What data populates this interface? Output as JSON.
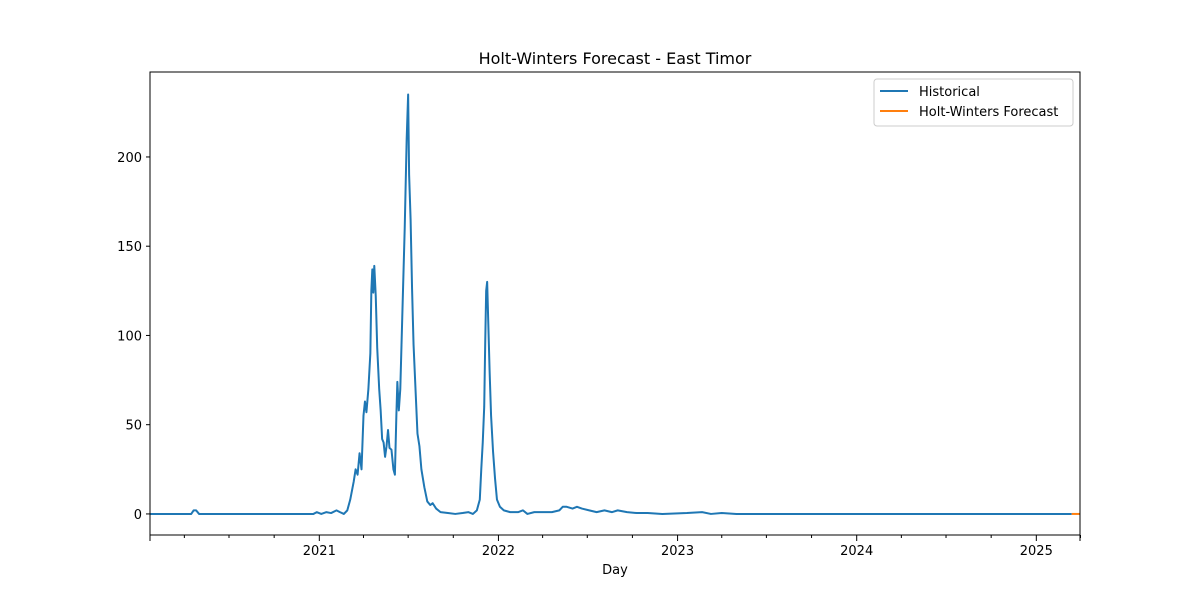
{
  "chart_data": {
    "type": "line",
    "title": "Holt-Winters Forecast - East Timor",
    "xlabel": "Day",
    "ylabel": "",
    "xlim": [
      "2020-01-22",
      "2025-03-31"
    ],
    "ylim": [
      -11.8,
      247.6
    ],
    "x_ticks": [
      {
        "date": "2021-01-01",
        "label": "2021"
      },
      {
        "date": "2022-01-01",
        "label": "2022"
      },
      {
        "date": "2023-01-01",
        "label": "2023"
      },
      {
        "date": "2024-01-01",
        "label": "2024"
      },
      {
        "date": "2025-01-01",
        "label": "2025"
      }
    ],
    "x_minor_ticks": [
      "2020-04-01",
      "2020-07-01",
      "2020-10-01",
      "2021-04-01",
      "2021-07-01",
      "2021-10-01",
      "2022-04-01",
      "2022-07-01",
      "2022-10-01",
      "2023-04-01",
      "2023-07-01",
      "2023-10-01",
      "2024-04-01",
      "2024-07-01",
      "2024-10-01",
      "2025-04-01"
    ],
    "y_ticks": [
      0,
      50,
      100,
      150,
      200
    ],
    "grid": false,
    "legend_position": "upper right",
    "series": [
      {
        "name": "Historical",
        "color": "#1f77b4",
        "points": [
          [
            "2020-01-22",
            0
          ],
          [
            "2020-04-15",
            0
          ],
          [
            "2020-04-20",
            2
          ],
          [
            "2020-04-25",
            2
          ],
          [
            "2020-05-01",
            0
          ],
          [
            "2020-08-01",
            0
          ],
          [
            "2020-12-20",
            0
          ],
          [
            "2020-12-27",
            1
          ],
          [
            "2021-01-05",
            0
          ],
          [
            "2021-01-15",
            1
          ],
          [
            "2021-01-25",
            0.5
          ],
          [
            "2021-02-05",
            2
          ],
          [
            "2021-02-12",
            1
          ],
          [
            "2021-02-20",
            0
          ],
          [
            "2021-02-27",
            2
          ],
          [
            "2021-03-05",
            8
          ],
          [
            "2021-03-12",
            18
          ],
          [
            "2021-03-16",
            25
          ],
          [
            "2021-03-20",
            22
          ],
          [
            "2021-03-24",
            34
          ],
          [
            "2021-03-28",
            25
          ],
          [
            "2021-04-01",
            55
          ],
          [
            "2021-04-04",
            63
          ],
          [
            "2021-04-07",
            57
          ],
          [
            "2021-04-11",
            70
          ],
          [
            "2021-04-15",
            90
          ],
          [
            "2021-04-17",
            125
          ],
          [
            "2021-04-19",
            137
          ],
          [
            "2021-04-21",
            124
          ],
          [
            "2021-04-23",
            139
          ],
          [
            "2021-04-26",
            122
          ],
          [
            "2021-04-29",
            93
          ],
          [
            "2021-05-03",
            70
          ],
          [
            "2021-05-06",
            58
          ],
          [
            "2021-05-09",
            42
          ],
          [
            "2021-05-12",
            40
          ],
          [
            "2021-05-15",
            32
          ],
          [
            "2021-05-18",
            38
          ],
          [
            "2021-05-21",
            47
          ],
          [
            "2021-05-24",
            37
          ],
          [
            "2021-05-28",
            36
          ],
          [
            "2021-06-01",
            25
          ],
          [
            "2021-06-04",
            22
          ],
          [
            "2021-06-07",
            55
          ],
          [
            "2021-06-09",
            74
          ],
          [
            "2021-06-12",
            58
          ],
          [
            "2021-06-15",
            70
          ],
          [
            "2021-06-19",
            110
          ],
          [
            "2021-06-24",
            160
          ],
          [
            "2021-06-28",
            210
          ],
          [
            "2021-07-01",
            235
          ],
          [
            "2021-07-03",
            190
          ],
          [
            "2021-07-06",
            165
          ],
          [
            "2021-07-09",
            126
          ],
          [
            "2021-07-12",
            95
          ],
          [
            "2021-07-16",
            70
          ],
          [
            "2021-07-20",
            45
          ],
          [
            "2021-07-24",
            38
          ],
          [
            "2021-07-28",
            25
          ],
          [
            "2021-08-03",
            15
          ],
          [
            "2021-08-09",
            7
          ],
          [
            "2021-08-15",
            5
          ],
          [
            "2021-08-20",
            6
          ],
          [
            "2021-08-27",
            3
          ],
          [
            "2021-09-05",
            1
          ],
          [
            "2021-09-20",
            0.5
          ],
          [
            "2021-10-05",
            0
          ],
          [
            "2021-10-20",
            0.5
          ],
          [
            "2021-11-01",
            1
          ],
          [
            "2021-11-10",
            0
          ],
          [
            "2021-11-18",
            2
          ],
          [
            "2021-11-24",
            8
          ],
          [
            "2021-11-27",
            25
          ],
          [
            "2021-11-30",
            40
          ],
          [
            "2021-12-03",
            60
          ],
          [
            "2021-12-05",
            95
          ],
          [
            "2021-12-07",
            125
          ],
          [
            "2021-12-09",
            130
          ],
          [
            "2021-12-11",
            110
          ],
          [
            "2021-12-14",
            80
          ],
          [
            "2021-12-17",
            55
          ],
          [
            "2021-12-21",
            35
          ],
          [
            "2021-12-25",
            20
          ],
          [
            "2021-12-29",
            8
          ],
          [
            "2022-01-04",
            4
          ],
          [
            "2022-01-12",
            2
          ],
          [
            "2022-01-25",
            1
          ],
          [
            "2022-02-10",
            1
          ],
          [
            "2022-02-20",
            2
          ],
          [
            "2022-03-01",
            0
          ],
          [
            "2022-03-15",
            1
          ],
          [
            "2022-04-01",
            1
          ],
          [
            "2022-04-20",
            1
          ],
          [
            "2022-05-05",
            2
          ],
          [
            "2022-05-12",
            4
          ],
          [
            "2022-05-20",
            4
          ],
          [
            "2022-06-01",
            3
          ],
          [
            "2022-06-10",
            4
          ],
          [
            "2022-06-20",
            3
          ],
          [
            "2022-07-05",
            2
          ],
          [
            "2022-07-20",
            1
          ],
          [
            "2022-08-05",
            2
          ],
          [
            "2022-08-20",
            1
          ],
          [
            "2022-09-01",
            2
          ],
          [
            "2022-09-20",
            1
          ],
          [
            "2022-10-10",
            0.5
          ],
          [
            "2022-11-01",
            0.5
          ],
          [
            "2022-12-01",
            0
          ],
          [
            "2023-01-20",
            0.5
          ],
          [
            "2023-02-20",
            1
          ],
          [
            "2023-03-10",
            0
          ],
          [
            "2023-04-01",
            0.5
          ],
          [
            "2023-05-01",
            0
          ],
          [
            "2023-07-01",
            0
          ],
          [
            "2024-01-01",
            0
          ],
          [
            "2025-03-14",
            0
          ]
        ]
      },
      {
        "name": "Holt-Winters Forecast",
        "color": "#ff7f0e",
        "points": [
          [
            "2025-03-14",
            0
          ],
          [
            "2025-03-31",
            0
          ]
        ]
      }
    ]
  }
}
